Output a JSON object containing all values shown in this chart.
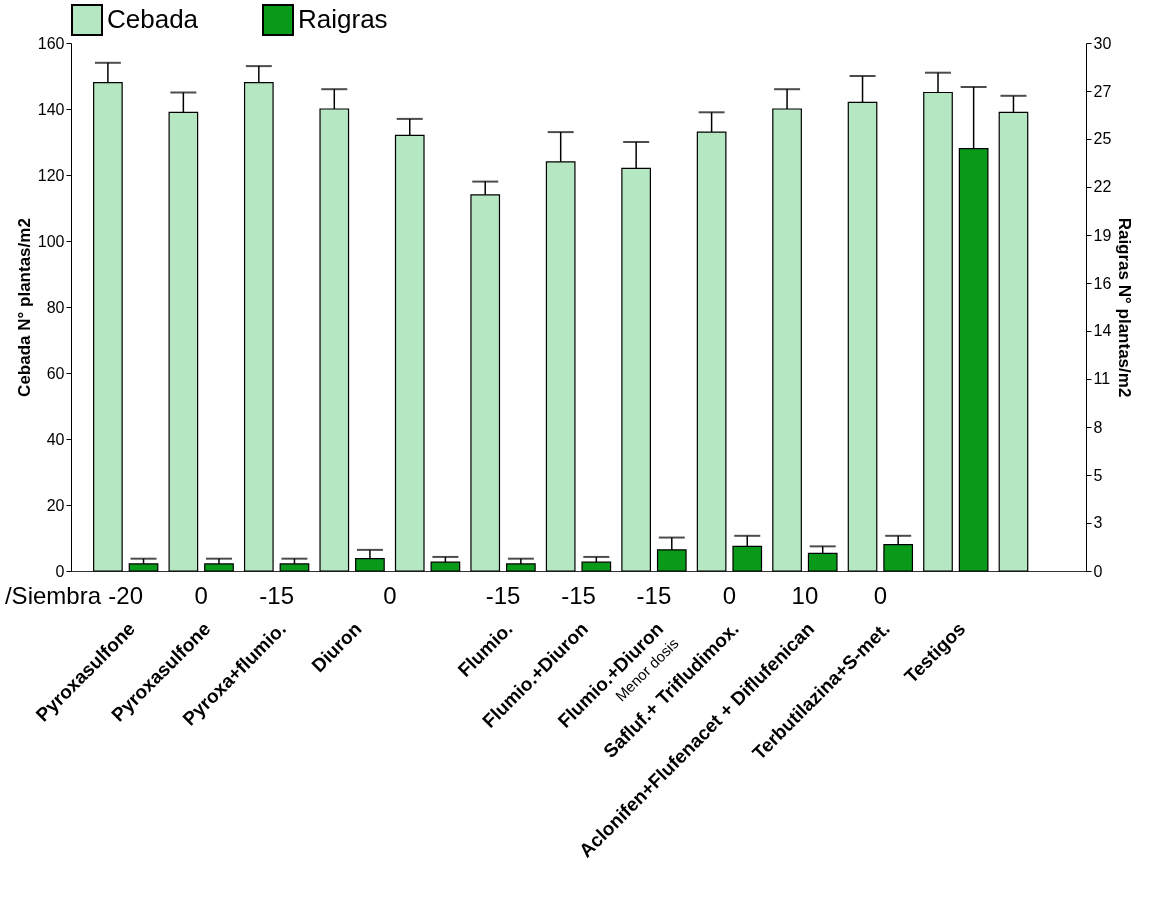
{
  "chart_data": {
    "type": "bar",
    "ylabel": "Cebada N° plantas/m2",
    "y2label": "Raigras N° plantas/m2",
    "categories": [
      "Pyroxasulfone",
      "Pyroxasulfone",
      "Pyroxa+flumio.",
      "Diuron",
      null,
      "Flumio.",
      "Flumio.+Diuron",
      "Flumio.+Diuron",
      "Safluf.+ Trifludimox.",
      "Aclonifen+Flufenacet + Diflufenican",
      "Terbutilazina+S-met.",
      "Testigos",
      null
    ],
    "series": [
      {
        "name": "Cebada",
        "color": "#b5e8c2",
        "values": [
          148,
          139,
          148,
          140,
          132,
          114,
          124,
          122,
          133,
          140,
          142,
          145,
          139
        ],
        "errors": [
          6,
          6,
          5,
          6,
          5,
          4,
          9,
          8,
          6,
          6,
          8,
          6,
          5
        ]
      },
      {
        "name": "Raigras",
        "color": "#0a9a1a",
        "axis": "y2",
        "values": [
          0.4,
          0.4,
          0.4,
          0.7,
          0.5,
          0.4,
          0.5,
          1.2,
          1.4,
          1.0,
          1.5,
          24,
          null
        ],
        "errors": [
          0.3,
          0.3,
          0.3,
          0.5,
          0.3,
          0.3,
          0.3,
          0.7,
          0.6,
          0.4,
          0.5,
          3.5,
          null
        ]
      }
    ],
    "ylim": [
      0,
      160
    ],
    "yticks": [
      0,
      20,
      40,
      60,
      80,
      100,
      120,
      140,
      160
    ],
    "y2lim": [
      0,
      30
    ],
    "y2ticks": [
      0,
      {
        "value": 2.73,
        "label": "3"
      },
      {
        "value": 5.45,
        "label": "5"
      },
      {
        "value": 8.18,
        "label": "8"
      },
      {
        "value": 10.91,
        "label": "11"
      },
      {
        "value": 13.64,
        "label": "14"
      },
      {
        "value": 16.36,
        "label": "16"
      },
      {
        "value": 19.09,
        "label": "19"
      },
      {
        "value": 21.82,
        "label": "22"
      },
      {
        "value": 24.55,
        "label": "25"
      },
      {
        "value": 27.27,
        "label": "27"
      },
      30
    ],
    "grid": false,
    "legend": "top",
    "annotations": [
      "/Siembra",
      "-20",
      "0",
      "-15",
      "0",
      "-15",
      "-15",
      "-15",
      "0",
      "10",
      "0",
      "Menor dosis"
    ]
  }
}
